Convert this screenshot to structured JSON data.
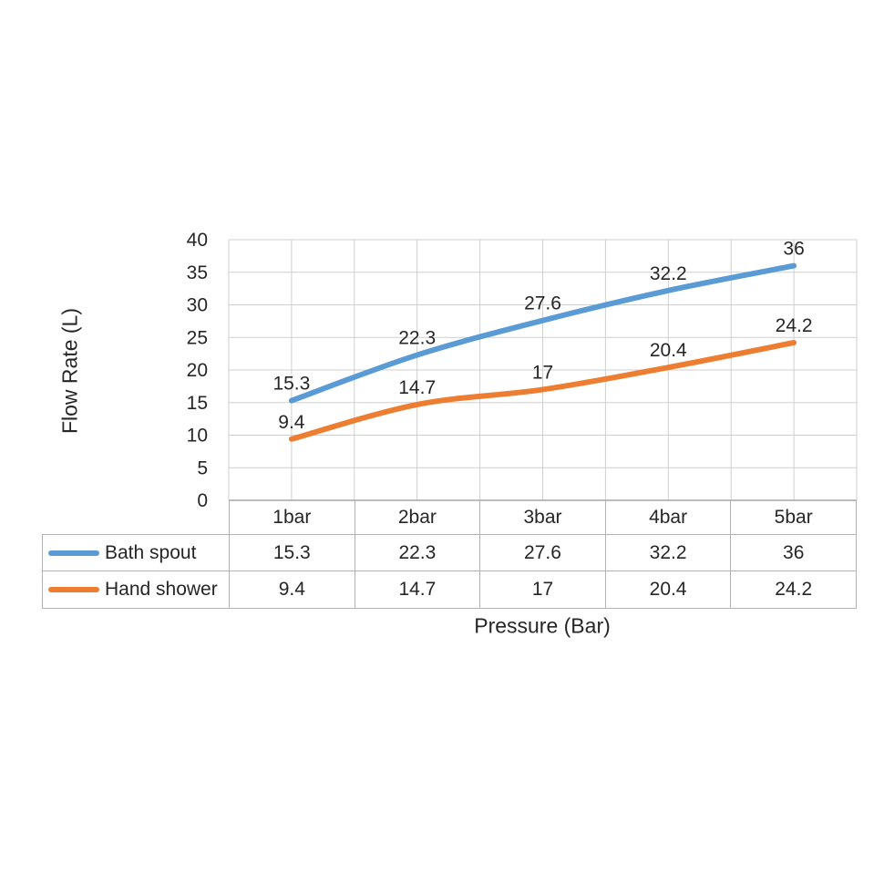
{
  "chart_data": {
    "type": "line",
    "title": "",
    "xlabel": "Pressure (Bar)",
    "ylabel": "Flow Rate (L)",
    "categories": [
      "1bar",
      "2bar",
      "3bar",
      "4bar",
      "5bar"
    ],
    "series": [
      {
        "name": "Bath spout",
        "color": "#5B9BD5",
        "values": [
          15.3,
          22.3,
          27.6,
          32.2,
          36
        ]
      },
      {
        "name": "Hand shower",
        "color": "#ED7D31",
        "values": [
          9.4,
          14.7,
          17,
          20.4,
          24.2
        ]
      }
    ],
    "ylim": [
      0,
      40
    ],
    "ytick_step": 5,
    "yticks": [
      0,
      5,
      10,
      15,
      20,
      25,
      30,
      35,
      40
    ],
    "grid": "horizontal-major-and-vertical-half-category",
    "legend_position": "data-table-left-column",
    "data_labels": "above-points",
    "smoothed_lines": true
  },
  "styles": {
    "background": "#ffffff",
    "grid_color": "#cfcfcf",
    "axis_color": "#a6a6a6",
    "table_border_color": "#b3b3b3",
    "text_color": "#262626"
  }
}
